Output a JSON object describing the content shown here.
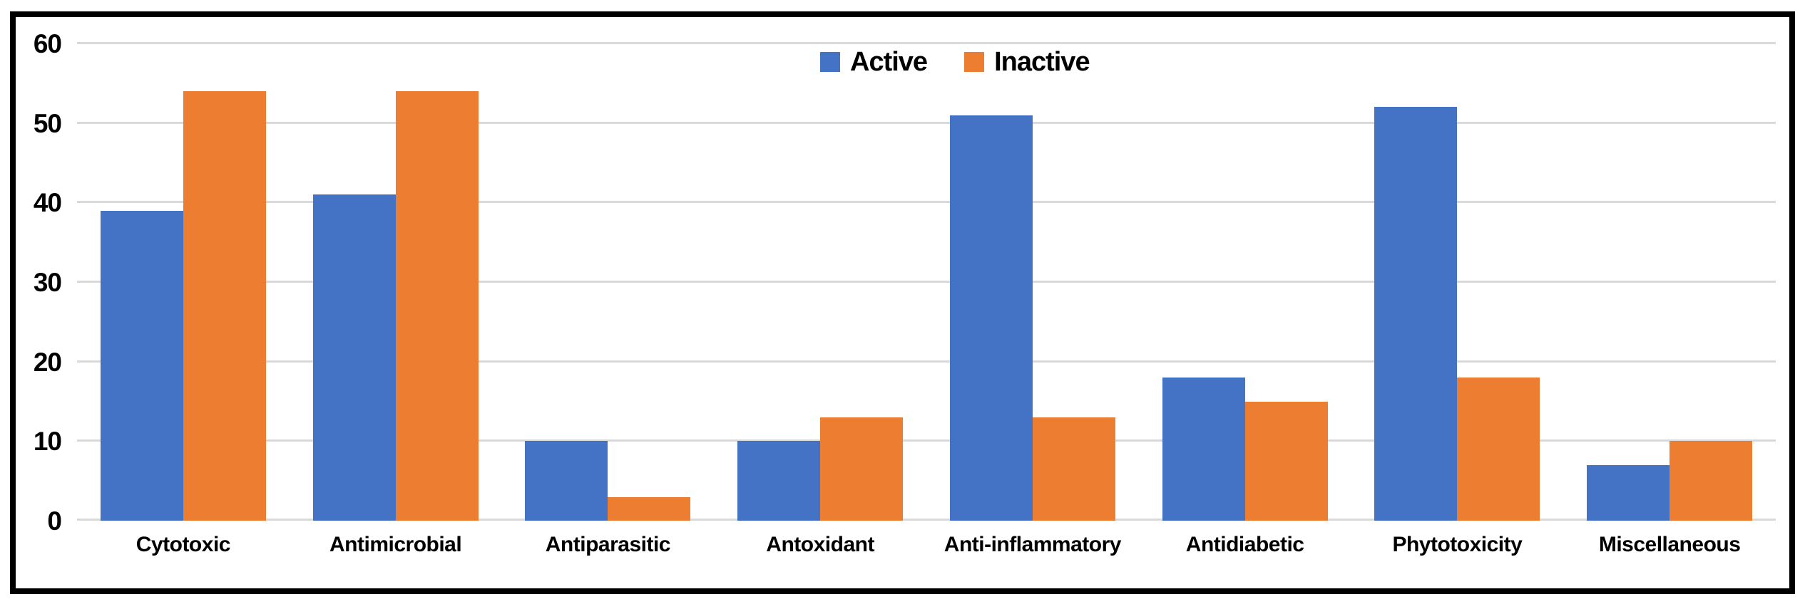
{
  "chart_data": {
    "type": "bar",
    "title": "",
    "xlabel": "",
    "ylabel": "",
    "categories": [
      "Cytotoxic",
      "Antimicrobial",
      "Antiparasitic",
      "Antoxidant",
      "Anti-inflammatory",
      "Antidiabetic",
      "Phytotoxicity",
      "Miscellaneous"
    ],
    "series": [
      {
        "name": "Active",
        "color": "#4472C4",
        "values": [
          39,
          41,
          10,
          10,
          51,
          18,
          52,
          7
        ]
      },
      {
        "name": "Inactive",
        "color": "#ED7D31",
        "values": [
          54,
          54,
          3,
          13,
          13,
          15,
          18,
          10
        ]
      }
    ],
    "ylim": [
      0,
      60
    ],
    "yticks": [
      0,
      10,
      20,
      30,
      40,
      50,
      60
    ],
    "grid": "horizontal",
    "legend_position": "top-center"
  },
  "colors": {
    "gridline": "#D9D9D9",
    "axis_text": "#000000",
    "frame_border": "#000000",
    "background": "#FFFFFF"
  }
}
